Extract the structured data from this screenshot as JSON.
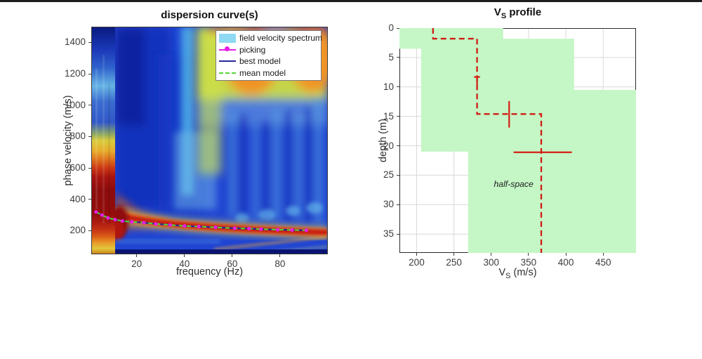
{
  "figure": {
    "background": "#ffffff",
    "top_edge_artifact_color": "#1d1d1d"
  },
  "chart_data": [
    {
      "type": "heatmap",
      "title": "dispersion curve(s)",
      "xlabel": "frequency (Hz)",
      "ylabel": "phase velocity (m/s)",
      "xlim": [
        1,
        100
      ],
      "ylim": [
        50,
        1500
      ],
      "xticks": [
        20,
        40,
        60,
        80
      ],
      "yticks": [
        200,
        400,
        600,
        800,
        1000,
        1200,
        1400
      ],
      "grid": false,
      "colormap": "jet",
      "legend": {
        "position": "top-right",
        "border_color": "#7a7a7a",
        "items": [
          {
            "label": "field velocity spectrum",
            "type": "patch",
            "color": "#8fd9f2"
          },
          {
            "label": "picking",
            "type": "line-marker",
            "color": "#e51fe5"
          },
          {
            "label": "best model",
            "type": "line",
            "color": "#28289a"
          },
          {
            "label": "mean model",
            "type": "dashed-line",
            "color": "#55d836"
          }
        ]
      },
      "picking": {
        "marker": "circle",
        "color": "#e51fe5",
        "f": [
          3,
          5.5,
          8,
          11,
          14,
          18,
          23,
          28,
          34,
          40,
          46,
          53,
          61,
          67,
          72,
          79,
          85,
          91
        ],
        "v": [
          320,
          300,
          282,
          271,
          262,
          257,
          252,
          244,
          237,
          231,
          227,
          222,
          216,
          214,
          210,
          207,
          205,
          203
        ]
      },
      "best_model": {
        "color": "#28289a",
        "style": "solid",
        "coincides_with": "picking"
      },
      "mean_model": {
        "color": "#55d836",
        "style": "dashed",
        "coincides_with": "picking"
      },
      "heatmap_features": [
        "high-energy red/orange column at 1-10 Hz spanning ~100-750 m/s",
        "dark navy band above ~1300 m/s at 1-10 Hz",
        "sharp vertical boundary at ~10 Hz",
        "dark red dispersion ridge following the picking curve from ~330 m/s at 3 Hz to ~205 m/s at 100 Hz",
        "broad yellow/orange high-amplitude zone above ~1000 m/s for 45-100 Hz with a red strip at the top edge",
        "light cyan vertical streaks around 40-55 Hz",
        "mottled blue background with faint cyan streaks at mid velocities",
        "thin diagonal orange aliasing streaks in the lower-right corner",
        "dark navy strip along the bottom edge"
      ]
    },
    {
      "type": "step-line",
      "title": {
        "main": "V",
        "sub": "S",
        "rest": " profile"
      },
      "xlabel": {
        "main": "V",
        "sub": "S",
        "rest": " (m/s)"
      },
      "ylabel": "depth (m)",
      "xlim": [
        177,
        494
      ],
      "depth_lim": [
        0,
        38.2
      ],
      "xticks": [
        200,
        250,
        300,
        350,
        400,
        450
      ],
      "yticks": [
        0,
        5,
        10,
        15,
        20,
        25,
        30,
        35
      ],
      "grid": true,
      "grid_color": "#d9d9d9",
      "box_color": "#2b2b2b",
      "search_region": {
        "fill": "#c5f6c6",
        "vertices": [
          [
            177,
            0
          ],
          [
            316,
            0
          ],
          [
            316,
            1.8
          ],
          [
            411,
            1.8
          ],
          [
            411,
            10.5
          ],
          [
            494,
            10.5
          ],
          [
            494,
            38.2
          ],
          [
            269,
            38.2
          ],
          [
            269,
            21
          ],
          [
            206,
            21
          ],
          [
            206,
            3.5
          ],
          [
            177,
            3.5
          ]
        ]
      },
      "profile": {
        "color": "#cf1d13",
        "style": "dashed",
        "layers": [
          {
            "vs": 222,
            "top": 0,
            "bottom": 1.8
          },
          {
            "vs": 281,
            "top": 1.8,
            "bottom": 14.6
          },
          {
            "vs": 367,
            "top": 14.6,
            "bottom": 38.2,
            "name": "half-space"
          }
        ],
        "points": [
          [
            222,
            0
          ],
          [
            222,
            1.8
          ],
          [
            281,
            1.8
          ],
          [
            281,
            14.6
          ],
          [
            367,
            14.6
          ],
          [
            367,
            38.2
          ]
        ]
      },
      "error_bars": [
        {
          "orient": "vertical",
          "vs": 281,
          "depth_from": 8.3,
          "depth_to": 9.6,
          "cap_at": 8.3,
          "cap_halfwidth_ms": 4,
          "color": "#d41f12"
        },
        {
          "orient": "vertical",
          "vs": 324,
          "depth_from": 12.4,
          "depth_to": 16.9,
          "color": "#d41f12"
        },
        {
          "orient": "horizontal",
          "depth": 21.1,
          "vs_from": 330,
          "vs_to": 408,
          "color": "#d41f12"
        }
      ],
      "annotation": {
        "text": "half-space",
        "vs": 330,
        "depth": 26.5,
        "style": "italic",
        "color": "#1b1b1b"
      }
    }
  ]
}
